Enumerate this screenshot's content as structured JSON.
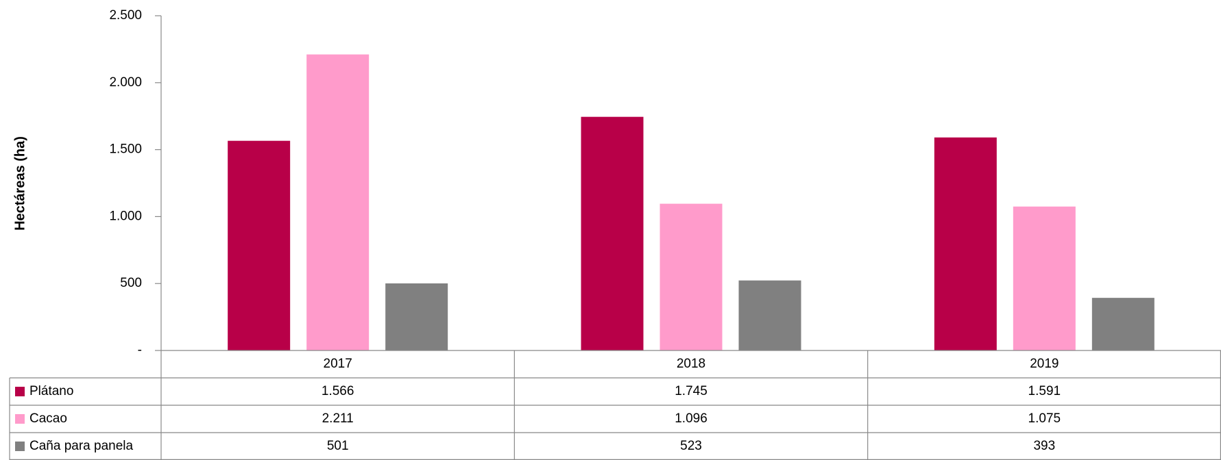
{
  "chart_data": {
    "type": "bar",
    "y_axis_label": "Hectáreas (ha)",
    "categories": [
      "2017",
      "2018",
      "2019"
    ],
    "series": [
      {
        "name": "Plátano",
        "color": "#b80048",
        "values": [
          1566,
          1745,
          1591
        ],
        "value_labels": [
          "1.566",
          "1.745",
          "1.591"
        ]
      },
      {
        "name": "Cacao",
        "color": "#ff9bcb",
        "values": [
          2211,
          1096,
          1075
        ],
        "value_labels": [
          "2.211",
          "1.096",
          "1.075"
        ]
      },
      {
        "name": "Caña para panela",
        "color": "#808080",
        "values": [
          501,
          523,
          393
        ],
        "value_labels": [
          "501",
          "523",
          "393"
        ]
      }
    ],
    "ylim": [
      0,
      2500
    ],
    "yticks": [
      {
        "value": 0,
        "label": "-"
      },
      500,
      {
        "value": 1000,
        "label": "1.000"
      },
      {
        "value": 1500,
        "label": "1.500"
      },
      {
        "value": 2000,
        "label": "2.000"
      },
      {
        "value": 2500,
        "label": "2.500"
      }
    ],
    "grid": false,
    "legend": "table"
  }
}
